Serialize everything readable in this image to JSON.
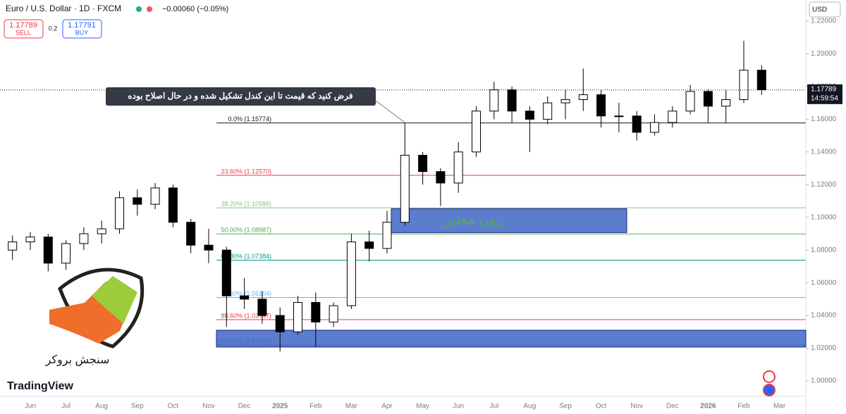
{
  "header": {
    "symbol": "Euro / U.S. Dollar · 1D · FXCM",
    "change": "−0.00060 (−0.05%)",
    "sell_price": 1.17789,
    "sell_label": "SELL",
    "spread": 0.2,
    "buy_price": 1.17791,
    "buy_label": "BUY",
    "currency": "USD",
    "timer": "14:59:54"
  },
  "branding": {
    "broker": "سنجش بروکر",
    "platform": "TradingView"
  },
  "chart_data": {
    "type": "candlestick",
    "categories": [
      null,
      "Jun",
      null,
      "Jul",
      null,
      "Aug",
      null,
      "Sep",
      null,
      "Oct",
      null,
      "Nov",
      null,
      "Dec",
      null,
      "2025",
      null,
      "Feb",
      null,
      "Mar",
      null,
      "Apr",
      null,
      "May",
      null,
      "Jun",
      null,
      "Jul",
      null,
      "Aug",
      null,
      "Sep",
      null,
      "Oct",
      null,
      "Nov",
      null,
      "Dec",
      null,
      "2026",
      null,
      "Feb",
      null,
      "Mar"
    ],
    "open": [
      1.08,
      1.085,
      1.088,
      1.072,
      1.084,
      1.09,
      1.093,
      1.112,
      1.108,
      1.118,
      1.097,
      1.083,
      1.08,
      1.052,
      1.05,
      1.04,
      1.03,
      1.048,
      1.036,
      1.046,
      1.085,
      1.081,
      1.097,
      1.138,
      1.128,
      1.121,
      1.14,
      1.165,
      1.178,
      1.165,
      1.16,
      1.17,
      1.172,
      1.175,
      1.162,
      1.162,
      1.152,
      1.158,
      1.165,
      1.177,
      1.168,
      1.172,
      1.19,
      null
    ],
    "high": [
      1.089,
      1.091,
      1.09,
      1.086,
      1.094,
      1.098,
      1.116,
      1.117,
      1.121,
      1.12,
      1.099,
      1.093,
      1.082,
      1.063,
      1.055,
      1.045,
      1.052,
      1.054,
      1.048,
      1.09,
      1.092,
      1.104,
      1.158,
      1.14,
      1.13,
      1.146,
      1.168,
      1.183,
      1.18,
      1.168,
      1.174,
      1.178,
      1.191,
      1.178,
      1.17,
      1.165,
      1.163,
      1.168,
      1.181,
      1.178,
      1.178,
      1.208,
      1.193,
      null
    ],
    "low": [
      1.074,
      1.08,
      1.067,
      1.068,
      1.08,
      1.084,
      1.09,
      1.101,
      1.105,
      1.094,
      1.078,
      1.072,
      1.033,
      1.044,
      1.035,
      1.018,
      1.028,
      1.021,
      1.033,
      1.044,
      1.073,
      1.078,
      1.095,
      1.12,
      1.107,
      1.115,
      1.137,
      1.16,
      1.158,
      1.14,
      1.157,
      1.16,
      1.165,
      1.155,
      1.152,
      1.147,
      1.15,
      1.155,
      1.163,
      1.158,
      1.158,
      1.17,
      1.175,
      null
    ],
    "close": [
      1.085,
      1.088,
      1.072,
      1.084,
      1.09,
      1.093,
      1.112,
      1.108,
      1.118,
      1.097,
      1.083,
      1.08,
      1.052,
      1.05,
      1.04,
      1.03,
      1.048,
      1.036,
      1.046,
      1.085,
      1.081,
      1.097,
      1.138,
      1.128,
      1.121,
      1.14,
      1.165,
      1.178,
      1.165,
      1.16,
      1.17,
      1.172,
      1.175,
      1.162,
      1.162,
      1.152,
      1.158,
      1.165,
      1.177,
      1.168,
      1.172,
      1.19,
      1.178,
      null
    ],
    "up_color": "#ffffff",
    "down_color": "#000000",
    "ylim": [
      1.0,
      1.22
    ],
    "yticks": [
      {
        "value": 1.0,
        "label": "1.00000"
      },
      {
        "value": 1.02,
        "label": "1.02000"
      },
      {
        "value": 1.04,
        "label": "1.04000"
      },
      {
        "value": 1.06,
        "label": "1.06000"
      },
      {
        "value": 1.08,
        "label": "1.08000"
      },
      {
        "value": 1.1,
        "label": "1.10000"
      },
      {
        "value": 1.12,
        "label": "1.12000"
      },
      {
        "value": 1.14,
        "label": "1.14000"
      },
      {
        "value": 1.16,
        "label": "1.16000"
      },
      {
        "value": 1.18,
        "label": "1.18000"
      },
      {
        "value": 1.2,
        "label": "1.20000"
      },
      {
        "value": 1.22,
        "label": "1.22000"
      }
    ],
    "last_price": 1.17789,
    "fib_levels": [
      {
        "label": "0.0% (1.15774)",
        "value": 1.15774,
        "color": "#131722"
      },
      {
        "label": "23.60% (1.12570)",
        "value": 1.1257,
        "color": "#f23645"
      },
      {
        "label": "38.20% (1.10588)",
        "value": 1.10588,
        "color": "#81c784"
      },
      {
        "label": "50.00% (1.08987)",
        "value": 1.08987,
        "color": "#4caf50"
      },
      {
        "label": "61.80% (1.07384)",
        "value": 1.07384,
        "color": "#089981"
      },
      {
        "label": "78.60% (1.05104)",
        "value": 1.05104,
        "color": "#64b5f6"
      },
      {
        "label": "88.60% (1.03747)",
        "value": 1.03747,
        "color": "#f23645"
      },
      {
        "label": "100.00% (1.02199)",
        "value": 1.02199,
        "color": "#131722"
      }
    ],
    "zones": [
      {
        "label": "زون معتبر",
        "top": 1.1053,
        "bottom": 1.0907,
        "color": "#4a6fc9"
      },
      {
        "label": null,
        "top": 1.031,
        "bottom": 1.0207,
        "color": "#4a6fc9"
      }
    ],
    "annotation": "فرض کنید که قیمت تا این کندل تشکیل شده و در حال اصلاح بوده"
  }
}
